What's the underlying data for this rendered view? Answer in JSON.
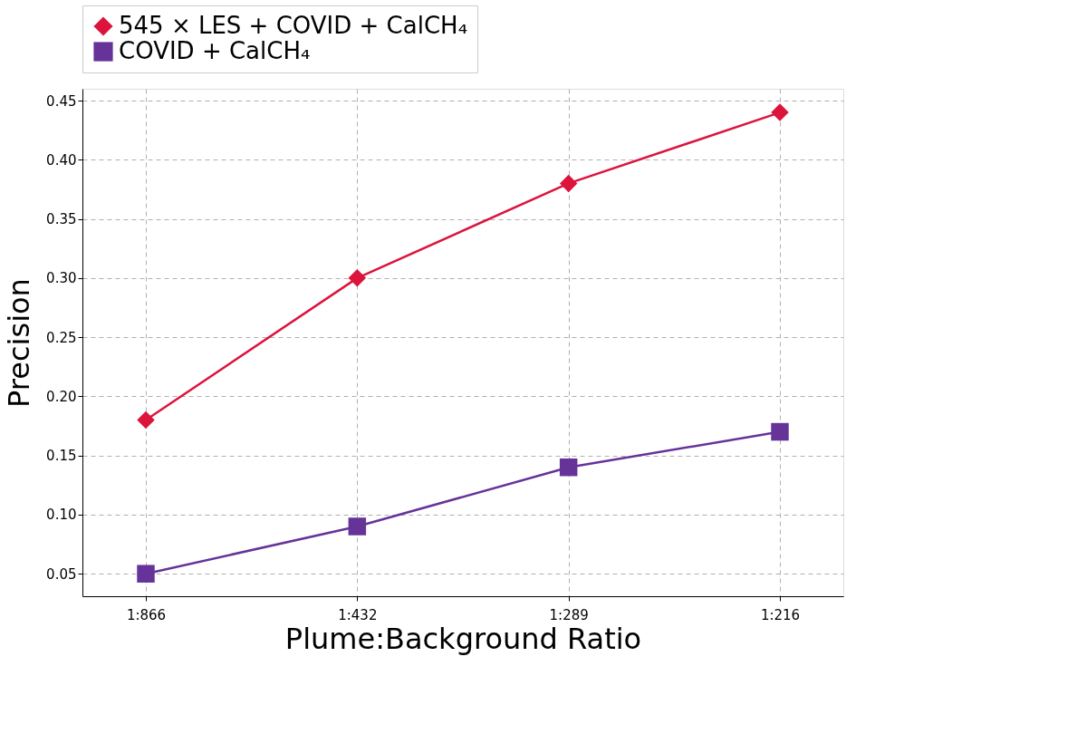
{
  "chart_data": {
    "type": "line",
    "xlabel": "Plume:Background Ratio",
    "ylabel": "Precision",
    "categories": [
      "1:866",
      "1:432",
      "1:289",
      "1:216"
    ],
    "series": [
      {
        "name": "545 × LES + COVID + CalCH₄",
        "color": "#dc143c",
        "marker": "diamond",
        "values": [
          0.18,
          0.3,
          0.38,
          0.44
        ]
      },
      {
        "name": "COVID + CalCH₄",
        "color": "#663399",
        "marker": "square",
        "values": [
          0.05,
          0.09,
          0.14,
          0.17
        ]
      }
    ],
    "ylim": [
      0.031,
      0.46
    ],
    "yticks": [
      0.05,
      {
        "value": 0.1,
        "label": "0.10"
      },
      0.15,
      {
        "value": 0.2,
        "label": "0.20"
      },
      0.25,
      {
        "value": 0.3,
        "label": "0.30"
      },
      0.35,
      {
        "value": 0.4,
        "label": "0.40"
      },
      0.45
    ],
    "grid": true,
    "legend": "top",
    "line_style": "solid"
  }
}
